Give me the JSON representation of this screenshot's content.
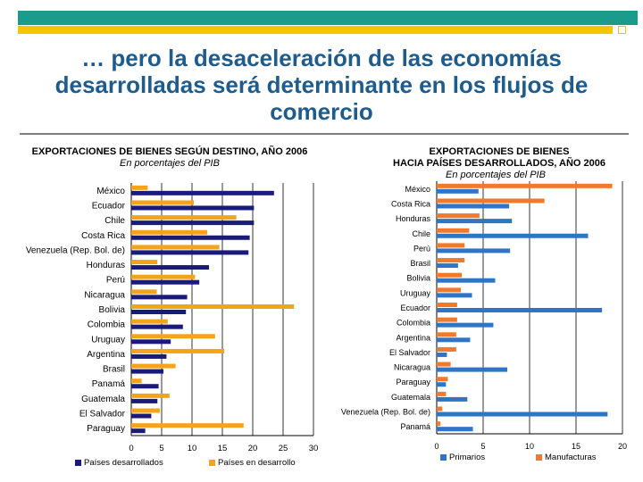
{
  "slide": {
    "title": "… pero la desaceleración de las economías\ndesarrolladas será determinante en los flujos de\ncomercio",
    "colors": {
      "teal": "#1a9b8c",
      "yellow": "#f6c400",
      "title": "#1f5c8c"
    }
  },
  "chart_data": [
    {
      "type": "bar",
      "orientation": "horizontal",
      "title": "EXPORTACIONES DE BIENES SEGÚN DESTINO, AÑO 2006",
      "subtitle": "En porcentajes del PIB",
      "categories": [
        "México",
        "Ecuador",
        "Chile",
        "Costa Rica",
        "Venezuela (Rep. Bol. de)",
        "Honduras",
        "Perú",
        "Nicaragua",
        "Bolivia",
        "Colombia",
        "Uruguay",
        "Argentina",
        "Brasil",
        "Panamá",
        "Guatemala",
        "El Salvador",
        "Paraguay"
      ],
      "series": [
        {
          "name": "Países desarrollados",
          "color": "#1a1a7a",
          "values": [
            23.5,
            20.2,
            20.2,
            19.5,
            19.3,
            12.8,
            11.2,
            9.2,
            9.0,
            8.5,
            6.5,
            5.8,
            5.3,
            4.5,
            4.3,
            3.3,
            2.3
          ]
        },
        {
          "name": "Países en desarrollo",
          "color": "#f4a41b",
          "values": [
            2.7,
            10.3,
            17.3,
            12.5,
            14.5,
            4.3,
            10.5,
            4.2,
            26.8,
            6.0,
            13.8,
            15.3,
            7.3,
            1.7,
            6.3,
            4.7,
            18.5
          ]
        }
      ],
      "xlim": [
        0,
        30
      ],
      "xticks": [
        0,
        5,
        10,
        15,
        20,
        25,
        30
      ],
      "grid": true,
      "legend": "bottom"
    },
    {
      "type": "bar",
      "orientation": "horizontal",
      "title": "EXPORTACIONES DE BIENES\nHACIA PAÍSES DESARROLLADOS, AÑO 2006",
      "subtitle": "En porcentajes del PIB",
      "categories": [
        "México",
        "Costa Rica",
        "Honduras",
        "Chile",
        "Perú",
        "Brasil",
        "Bolivia",
        "Uruguay",
        "Ecuador",
        "Colombia",
        "Argentina",
        "El Salvador",
        "Nicaragua",
        "Paraguay",
        "Guatemala",
        "Venezuela (Rep. Bol. de)",
        "Panamá"
      ],
      "series": [
        {
          "name": "Primarios",
          "color": "#2e75c8",
          "values": [
            4.5,
            7.8,
            8.1,
            16.3,
            7.9,
            2.3,
            6.3,
            3.8,
            17.8,
            6.1,
            3.6,
            1.1,
            7.6,
            1.0,
            3.3,
            18.4,
            3.9
          ]
        },
        {
          "name": "Manufacturas",
          "color": "#f07a2a",
          "values": [
            18.9,
            11.6,
            4.6,
            3.5,
            3.0,
            3.0,
            2.7,
            2.6,
            2.2,
            2.2,
            2.1,
            2.1,
            1.5,
            1.2,
            1.0,
            0.6,
            0.4
          ]
        }
      ],
      "xlim": [
        0,
        20
      ],
      "xticks": [
        0,
        5,
        10,
        15,
        20
      ],
      "grid": true,
      "legend": "bottom"
    }
  ]
}
